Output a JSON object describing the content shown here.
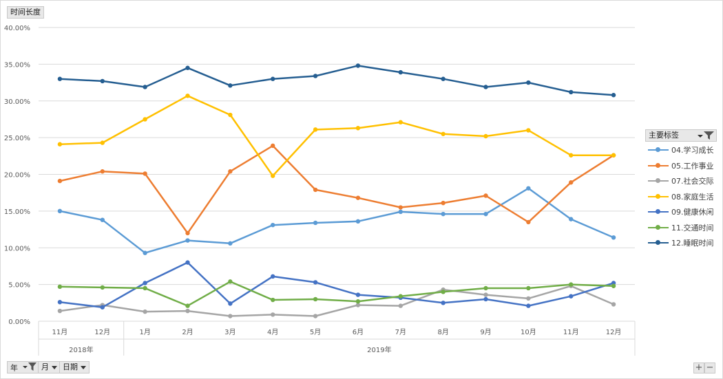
{
  "field_buttons": {
    "value_field": "时间长度",
    "year": "年",
    "month": "月",
    "date": "日期",
    "legend_field": "主要标签"
  },
  "colors": {
    "axis": "#d9d9d9",
    "grid": "#d9d9d9",
    "text": "#595959"
  },
  "icons": [
    "filter-icon",
    "dropdown-arrow-icon",
    "plus-icon",
    "minus-icon"
  ],
  "chart_data": {
    "type": "line",
    "title": "",
    "xlabel": "",
    "ylabel": "",
    "ylim": [
      0,
      40
    ],
    "yticks": [
      "0.00%",
      "5.00%",
      "10.00%",
      "15.00%",
      "20.00%",
      "25.00%",
      "30.00%",
      "35.00%",
      "40.00%"
    ],
    "grid": true,
    "legend_position": "right",
    "categories": [
      "11月",
      "12月",
      "1月",
      "2月",
      "3月",
      "4月",
      "5月",
      "6月",
      "7月",
      "8月",
      "9月",
      "10月",
      "11月",
      "12月"
    ],
    "category_groups": [
      {
        "label": "2018年",
        "count": 2
      },
      {
        "label": "2019年",
        "count": 12
      }
    ],
    "series": [
      {
        "name": "04.学习成长",
        "color": "#5b9bd5",
        "values": [
          15.0,
          13.8,
          9.3,
          11.0,
          10.6,
          13.1,
          13.4,
          13.6,
          14.9,
          14.6,
          14.6,
          18.1,
          13.9,
          11.4
        ]
      },
      {
        "name": "05.工作事业",
        "color": "#ed7d31",
        "values": [
          19.1,
          20.4,
          20.1,
          12.0,
          20.4,
          23.9,
          17.9,
          16.8,
          15.5,
          16.1,
          17.1,
          13.5,
          18.9,
          22.6
        ]
      },
      {
        "name": "07.社会交际",
        "color": "#a5a5a5",
        "values": [
          1.4,
          2.2,
          1.3,
          1.4,
          0.7,
          0.9,
          0.7,
          2.2,
          2.1,
          4.3,
          3.6,
          3.1,
          4.8,
          2.3
        ]
      },
      {
        "name": "08.家庭生活",
        "color": "#ffc000",
        "values": [
          24.1,
          24.3,
          27.5,
          30.7,
          28.1,
          19.8,
          26.1,
          26.3,
          27.1,
          25.5,
          25.2,
          26.0,
          22.6,
          22.6
        ]
      },
      {
        "name": "09.健康休闲",
        "color": "#4472c4",
        "values": [
          2.6,
          1.9,
          5.2,
          8.0,
          2.4,
          6.1,
          5.3,
          3.6,
          3.2,
          2.5,
          3.0,
          2.1,
          3.4,
          5.2
        ]
      },
      {
        "name": "11.交通时间",
        "color": "#70ad47",
        "values": [
          4.7,
          4.6,
          4.5,
          2.1,
          5.4,
          2.9,
          3.0,
          2.7,
          3.4,
          4.0,
          4.5,
          4.5,
          5.0,
          4.8
        ]
      },
      {
        "name": "12.睡眠时间",
        "color": "#255e91",
        "values": [
          33.0,
          32.7,
          31.9,
          34.5,
          32.1,
          33.0,
          33.4,
          34.8,
          33.9,
          33.0,
          31.9,
          32.5,
          31.2,
          30.8
        ]
      }
    ]
  }
}
